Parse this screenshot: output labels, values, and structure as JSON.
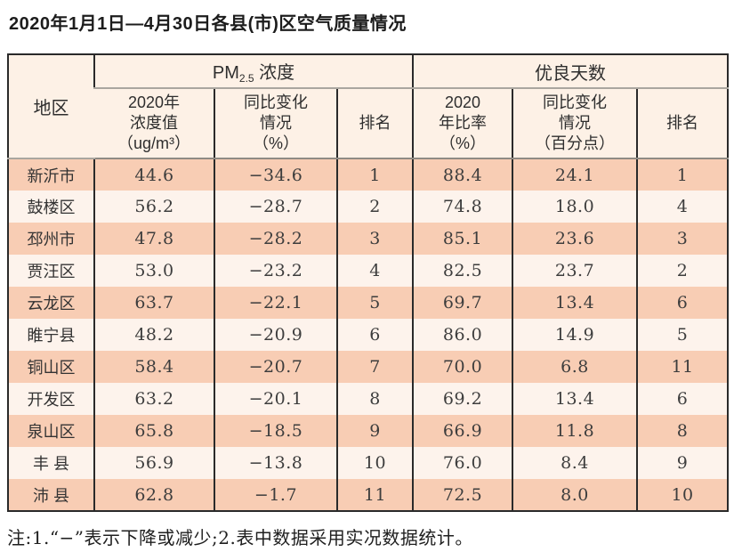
{
  "title": "2020年1月1日—4月30日各县(市)区空气质量情况",
  "colors": {
    "row_salmon": "#f8cdb4",
    "row_cream": "#fdf3ec",
    "header_bg": "#fdf1e6",
    "border_dark": "#2a2a2a",
    "header_rule_gray": "#8f8b84"
  },
  "header": {
    "region": "地区",
    "pm_group": {
      "pre": "PM",
      "sub": "2.5",
      "post": " 浓度"
    },
    "good_group": "优良天数",
    "pm_value": {
      "l1": "2020年",
      "l2": "浓度值",
      "l3": "（ug/m³）"
    },
    "pm_change": {
      "l1": "同比变化",
      "l2": "情况",
      "l3": "（%）"
    },
    "pm_rank": "排名",
    "good_ratio": {
      "l1": "2020",
      "l2": "年比率",
      "l3": "（%）"
    },
    "good_change": {
      "l1": "同比变化",
      "l2": "情况",
      "l3": "（百分点）"
    },
    "good_rank": "排名"
  },
  "rows": [
    [
      "新沂市",
      "44.6",
      "−34.6",
      "1",
      "88.4",
      "24.1",
      "1"
    ],
    [
      "鼓楼区",
      "56.2",
      "−28.7",
      "2",
      "74.8",
      "18.0",
      "4"
    ],
    [
      "邳州市",
      "47.8",
      "−28.2",
      "3",
      "85.1",
      "23.6",
      "3"
    ],
    [
      "贾汪区",
      "53.0",
      "−23.2",
      "4",
      "82.5",
      "23.7",
      "2"
    ],
    [
      "云龙区",
      "63.7",
      "−22.1",
      "5",
      "69.7",
      "13.4",
      "6"
    ],
    [
      "睢宁县",
      "48.2",
      "−20.9",
      "6",
      "86.0",
      "14.9",
      "5"
    ],
    [
      "铜山区",
      "58.4",
      "−20.7",
      "7",
      "70.0",
      "6.8",
      "11"
    ],
    [
      "开发区",
      "63.2",
      "−20.1",
      "8",
      "69.2",
      "13.4",
      "6"
    ],
    [
      "泉山区",
      "65.8",
      "−18.5",
      "9",
      "66.9",
      "11.8",
      "8"
    ],
    [
      "丰 县",
      "56.9",
      "−13.8",
      "10",
      "76.0",
      "8.4",
      "9"
    ],
    [
      "沛 县",
      "62.8",
      "−1.7",
      "11",
      "72.5",
      "8.0",
      "10"
    ]
  ],
  "note": "注:1.“−”表示下降或减少;2.表中数据采用实况数据统计。"
}
